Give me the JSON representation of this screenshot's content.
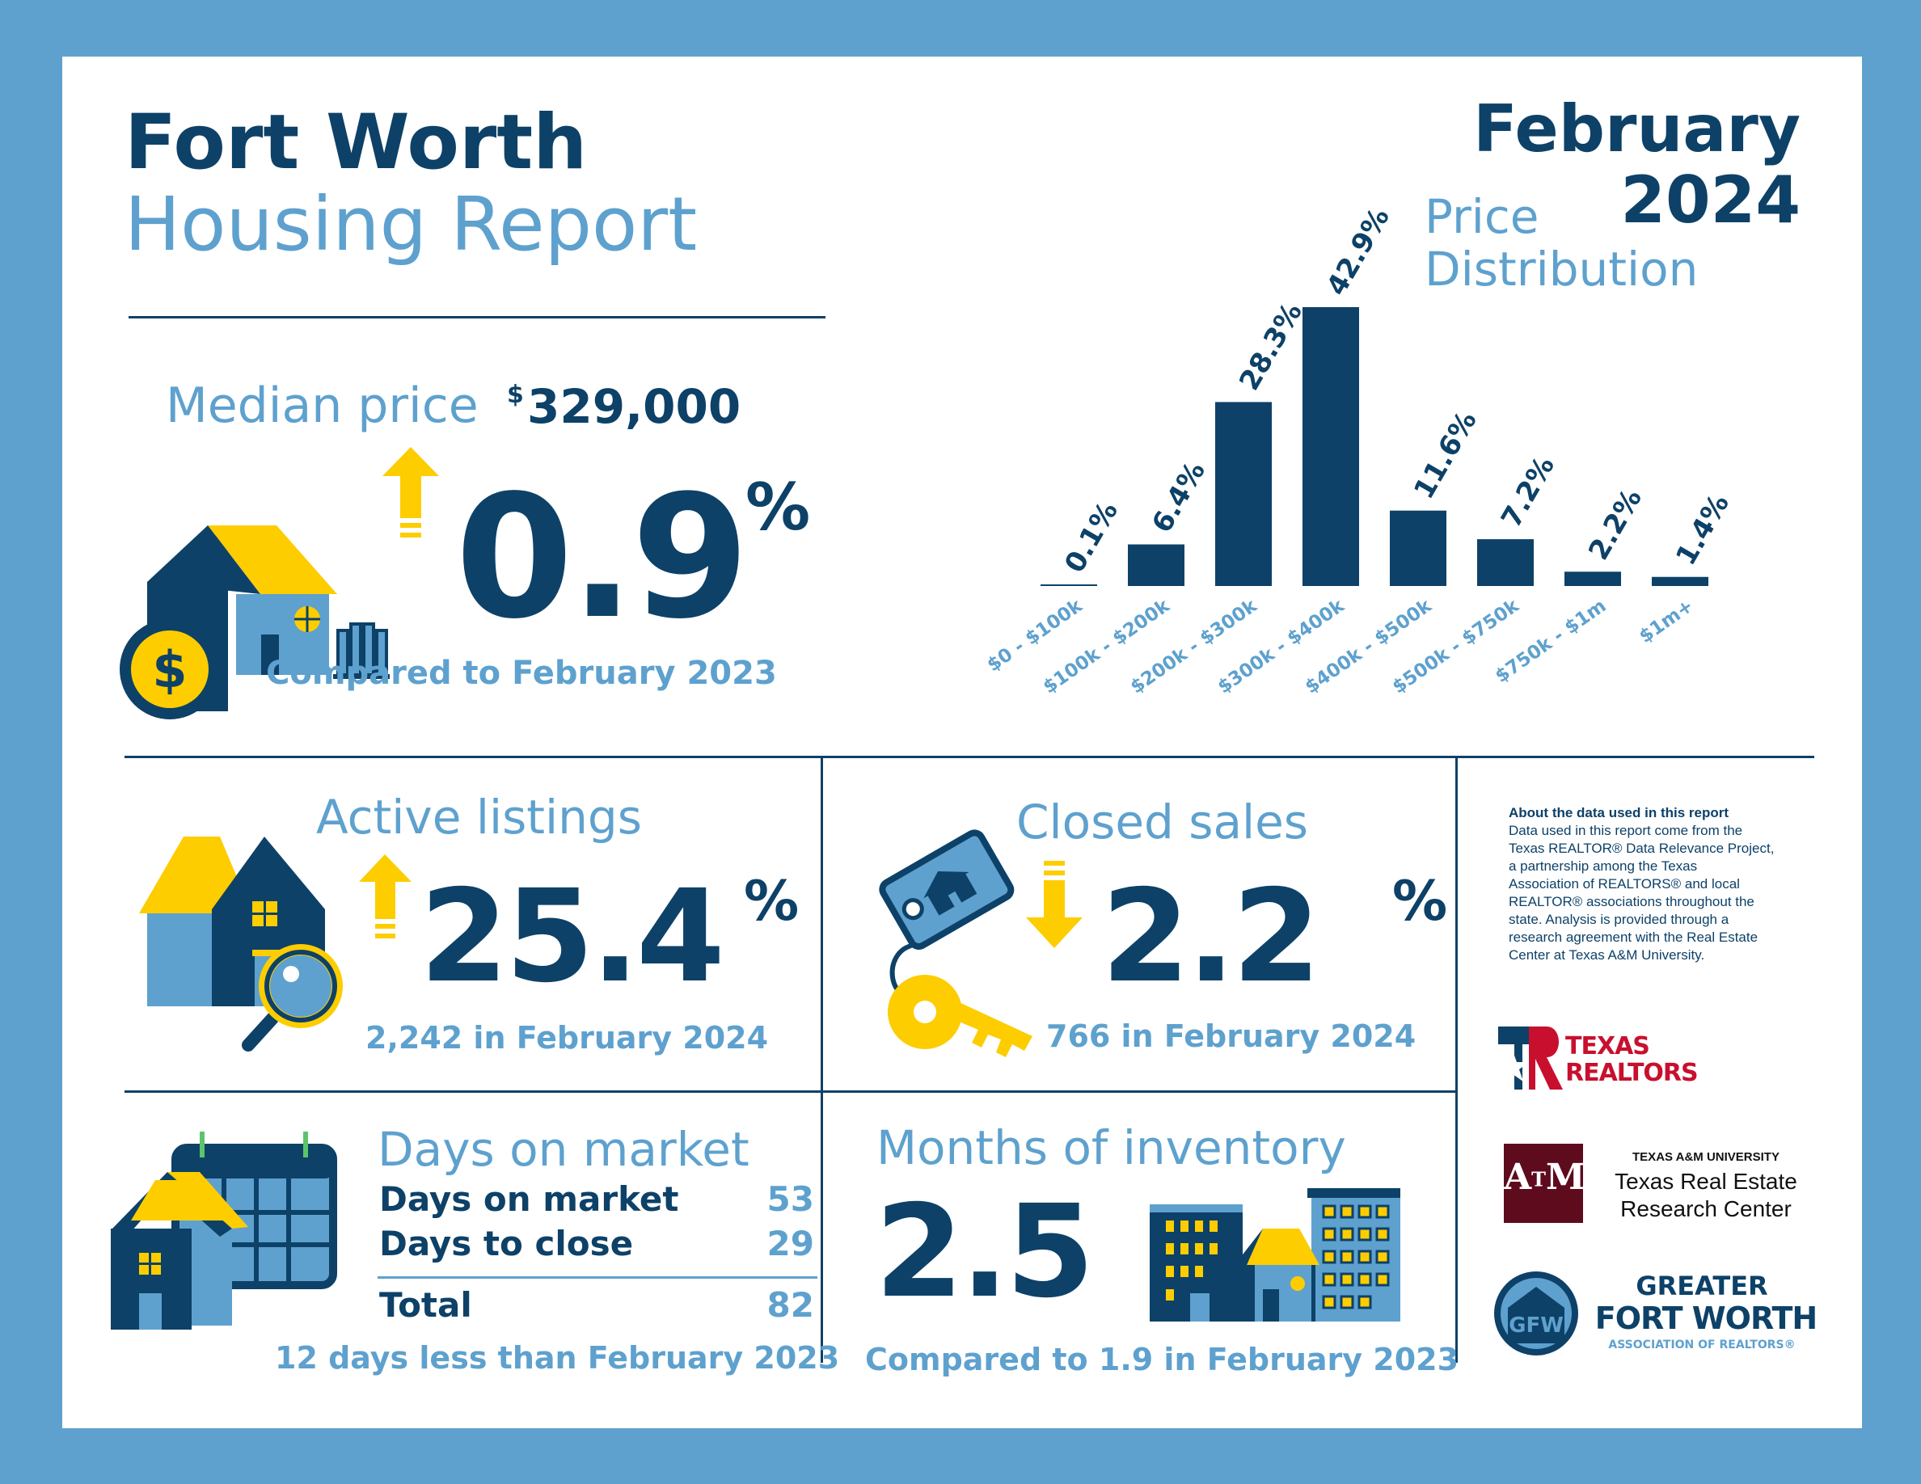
{
  "header": {
    "city": "Fort Worth",
    "report": "Housing Report",
    "month": "February",
    "year": "2024"
  },
  "median": {
    "label": "Median price",
    "currency": "$",
    "price": "329,000",
    "change_value": "0.9",
    "change_unit": "%",
    "direction": "up",
    "comparison": "Compared to February 2023"
  },
  "price_distribution": {
    "title_line1": "Price",
    "title_line2": "Distribution"
  },
  "chart_data": {
    "type": "bar",
    "title": "Price Distribution",
    "categories": [
      "$0 - $100k",
      "$100k - $200k",
      "$200k - $300k",
      "$300k - $400k",
      "$400k - $500k",
      "$500k - $750k",
      "$750k - $1m",
      "$1m+"
    ],
    "values": [
      0.1,
      6.4,
      28.3,
      42.9,
      11.6,
      7.2,
      2.2,
      1.4
    ],
    "value_labels": [
      "0.1%",
      "6.4%",
      "28.3%",
      "42.9%",
      "11.6%",
      "7.2%",
      "2.2%",
      "1.4%"
    ],
    "unit": "%",
    "ylim": [
      0,
      42.9
    ],
    "grid": false,
    "legend": "none",
    "bar_color": "#0d4168",
    "label_color": "#5ea1ce"
  },
  "active_listings": {
    "title": "Active listings",
    "change_value": "25.4",
    "change_unit": "%",
    "direction": "up",
    "detail": "2,242 in February 2024"
  },
  "closed_sales": {
    "title": "Closed sales",
    "change_value": "2.2",
    "change_unit": "%",
    "direction": "down",
    "detail": "766 in February 2024"
  },
  "days_on_market": {
    "title": "Days on market",
    "rows": [
      {
        "label": "Days on market",
        "value": "53"
      },
      {
        "label": "Days to close",
        "value": "29"
      }
    ],
    "total_label": "Total",
    "total_value": "82",
    "comparison": "12 days less than February 2023"
  },
  "months_inventory": {
    "title": "Months of inventory",
    "value": "2.5",
    "comparison": "Compared to 1.9 in February 2023"
  },
  "about": {
    "heading": "About the data used in this report",
    "lines": [
      "Data used in this report come from the",
      "Texas REALTOR® Data Relevance Project,",
      "a partnership among the Texas",
      "Association of REALTORS® and local",
      "REALTOR® associations throughout the",
      "state. Analysis is provided through a",
      "research agreement with the Real Estate",
      "Center at Texas A&M University."
    ]
  },
  "logos": {
    "texas_realtors": [
      "TEXAS",
      "REALTORS"
    ],
    "tamu_top": "TEXAS A&M UNIVERSITY",
    "tamu_line1": "Texas Real Estate",
    "tamu_line2": "Research Center",
    "gfw_line1": "GREATER",
    "gfw_line2": "FORT WORTH",
    "gfw_line3": "ASSOCIATION OF REALTORS®"
  },
  "colors": {
    "navy": "#0d4168",
    "light_blue": "#5ea1ce",
    "yellow": "#fdcd00",
    "maroon": "#5e0b1e",
    "red": "#c8102e"
  }
}
